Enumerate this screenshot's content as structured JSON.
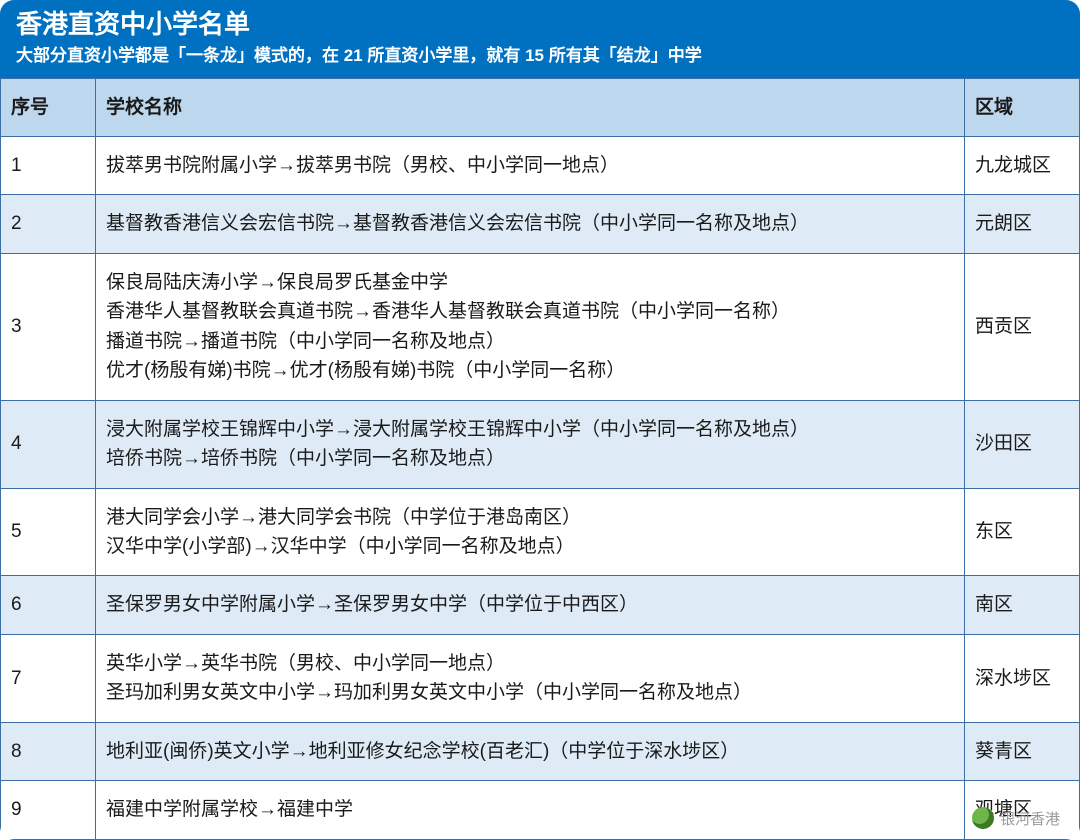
{
  "colors": {
    "header_bg": "#0070c0",
    "header_text": "#ffffff",
    "th_bg": "#bdd7ee",
    "row_alt_bg": "#deebf6",
    "row_bg": "#ffffff",
    "border": "#3a6ea5",
    "text": "#1a1a1a"
  },
  "header": {
    "title": "香港直资中小学名单",
    "subtitle": "大部分直资小学都是「一条龙」模式的，在 21 所直资小学里，就有 15 所有其「结龙」中学"
  },
  "table": {
    "columns": [
      "序号",
      "学校名称",
      "区域"
    ],
    "rows": [
      {
        "idx": "1",
        "area": "九龙城区",
        "name": "拔萃男书院附属小学→拔萃男书院（男校、中小学同一地点）"
      },
      {
        "idx": "2",
        "area": "元朗区",
        "name": "基督教香港信义会宏信书院→基督教香港信义会宏信书院（中小学同一名称及地点）"
      },
      {
        "idx": "3",
        "area": "西贡区",
        "name": "保良局陆庆涛小学→保良局罗氏基金中学\n香港华人基督教联会真道书院→香港华人基督教联会真道书院（中小学同一名称）\n播道书院→播道书院（中小学同一名称及地点）\n优才(杨殷有娣)书院→优才(杨殷有娣)书院（中小学同一名称）"
      },
      {
        "idx": "4",
        "area": "沙田区",
        "name": "浸大附属学校王锦辉中小学→浸大附属学校王锦辉中小学（中小学同一名称及地点）\n培侨书院→培侨书院（中小学同一名称及地点）"
      },
      {
        "idx": "5",
        "area": "东区",
        "name": "港大同学会小学→港大同学会书院（中学位于港岛南区）\n汉华中学(小学部)→汉华中学（中小学同一名称及地点）"
      },
      {
        "idx": "6",
        "area": "南区",
        "name": "圣保罗男女中学附属小学→圣保罗男女中学（中学位于中西区）"
      },
      {
        "idx": "7",
        "area": "深水埗区",
        "name": "英华小学→英华书院（男校、中小学同一地点）\n圣玛加利男女英文中小学→玛加利男女英文中小学（中小学同一名称及地点）"
      },
      {
        "idx": "8",
        "area": "葵青区",
        "name": "地利亚(闽侨)英文小学→地利亚修女纪念学校(百老汇)（中学位于深水埗区）"
      },
      {
        "idx": "9",
        "area": "观塘区",
        "name": "福建中学附属学校→福建中学"
      }
    ]
  },
  "brand": {
    "text": "银河香港"
  }
}
